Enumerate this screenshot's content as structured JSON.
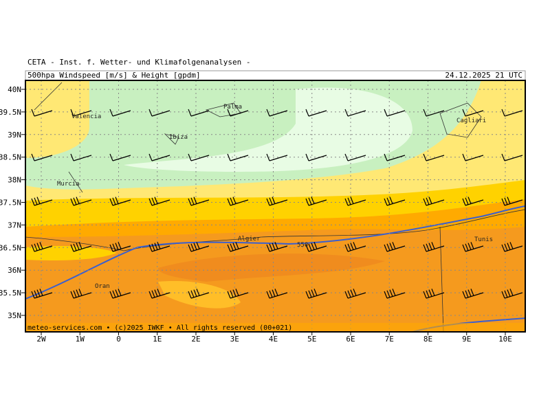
{
  "header": {
    "institute": "CETA - Inst. f. Wetter- und Klimafolgenanalysen -",
    "product": "500hpa Windspeed [m/s] & Height [gpdm]",
    "valid_time": "24.12.2025 21 UTC"
  },
  "footer": "meteo-services.com • (c)2025 IWKF • All rights reserved (00+021)",
  "map": {
    "lat_labels": [
      "40N",
      "39.5N",
      "39N",
      "38.5N",
      "38N",
      "37.5N",
      "37N",
      "36.5N",
      "36N",
      "35.5N",
      "35N"
    ],
    "lon_labels": [
      "2W",
      "1W",
      "0",
      "1E",
      "2E",
      "3E",
      "4E",
      "5E",
      "6E",
      "7E",
      "8E",
      "9E",
      "10E"
    ],
    "cities": [
      {
        "name": "Valencia"
      },
      {
        "name": "Palma"
      },
      {
        "name": "Ibiza"
      },
      {
        "name": "Murcia"
      },
      {
        "name": "Cagliari"
      },
      {
        "name": "Algier"
      },
      {
        "name": "Tunis"
      },
      {
        "name": "Oran"
      }
    ],
    "contour_label": "550"
  }
}
